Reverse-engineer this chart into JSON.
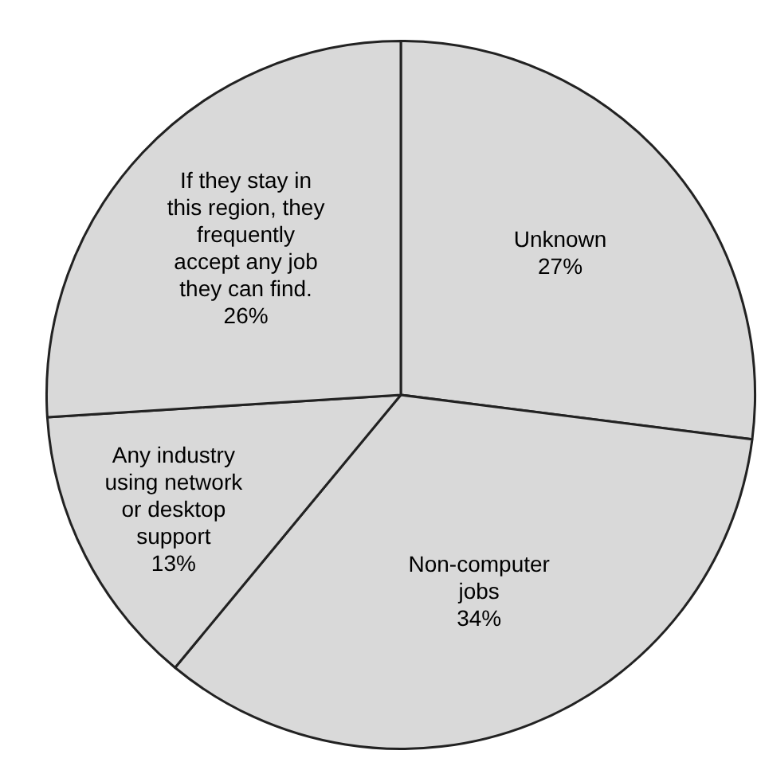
{
  "chart_data": {
    "type": "pie",
    "categories": [
      "Unknown",
      "Non-computer jobs",
      "Any industry using network or desktop support",
      "If they stay in this region, they frequently accept any job they can find."
    ],
    "values": [
      27,
      34,
      13,
      26
    ],
    "value_labels": [
      "27%",
      "34%",
      "13%",
      "26%"
    ],
    "colors": [
      "#d9d9d9",
      "#d9d9d9",
      "#d9d9d9",
      "#d9d9d9"
    ],
    "legend": false
  }
}
